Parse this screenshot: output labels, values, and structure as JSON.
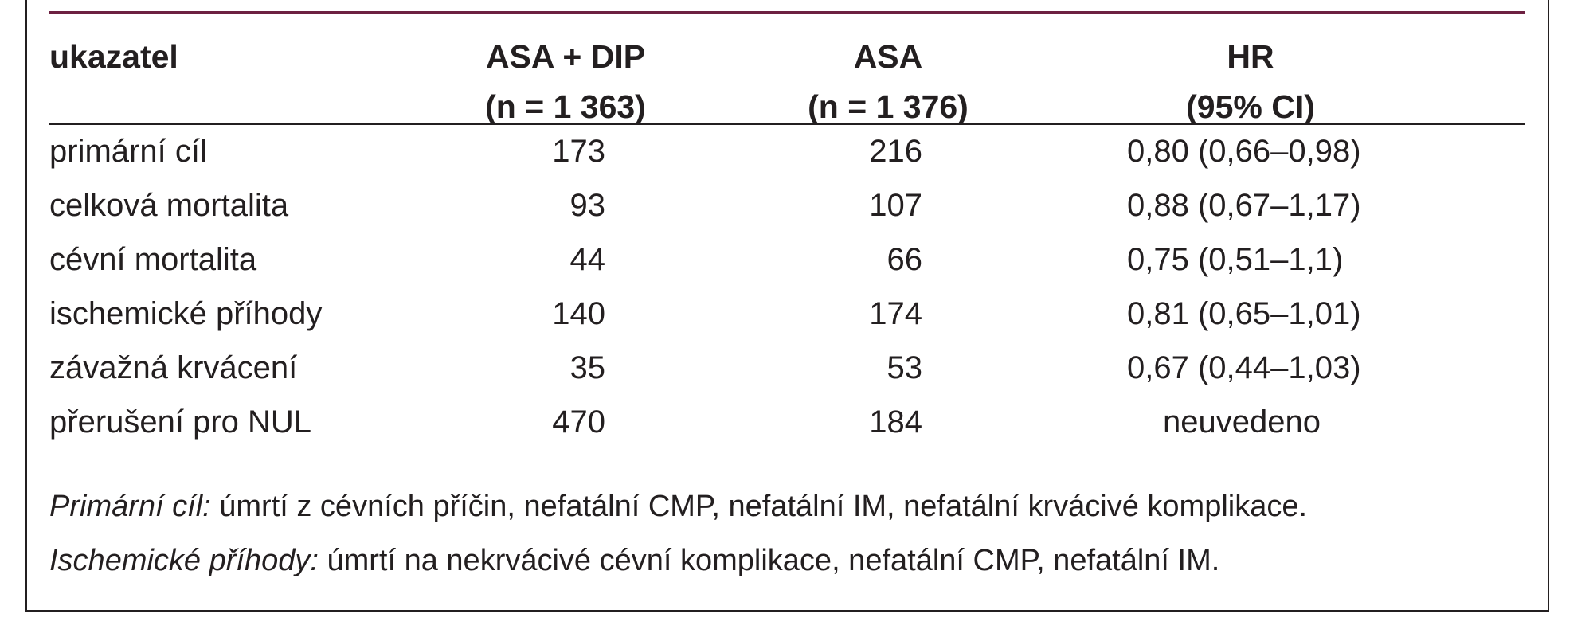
{
  "table": {
    "headers": {
      "label": "ukazatel",
      "col1_line1": "ASA + DIP",
      "col1_line2": "(n = 1 363)",
      "col2_line1": "ASA",
      "col2_line2": "(n = 1 376)",
      "col3_line1": "HR",
      "col3_line2": "(95% CI)"
    },
    "rows": [
      {
        "label": "primární cíl",
        "asa_dip": "173",
        "asa": "216",
        "hr": "0,80  (0,66–0,98)"
      },
      {
        "label": "celková mortalita",
        "asa_dip": "93",
        "asa": "107",
        "hr": "0,88  (0,67–1,17)"
      },
      {
        "label": "cévní mortalita",
        "asa_dip": "44",
        "asa": "66",
        "hr": "0,75  (0,51–1,1)"
      },
      {
        "label": "ischemické příhody",
        "asa_dip": "140",
        "asa": "174",
        "hr": "0,81  (0,65–1,01)"
      },
      {
        "label": "závažná krvácení",
        "asa_dip": "35",
        "asa": "53",
        "hr": "0,67  (0,44–1,03)"
      },
      {
        "label": "přerušení pro NUL",
        "asa_dip": "470",
        "asa": "184",
        "hr": "neuvedeno"
      }
    ]
  },
  "notes": [
    {
      "term": "Primární cíl:",
      "text": " úmrtí z cévních příčin, nefatální CMP, nefatální IM, nefatální krvácivé komplikace."
    },
    {
      "term": "Ischemické příhody:",
      "text": " úmrtí na nekrvácivé cévní komplikace, nefatální CMP, nefatální IM."
    }
  ]
}
